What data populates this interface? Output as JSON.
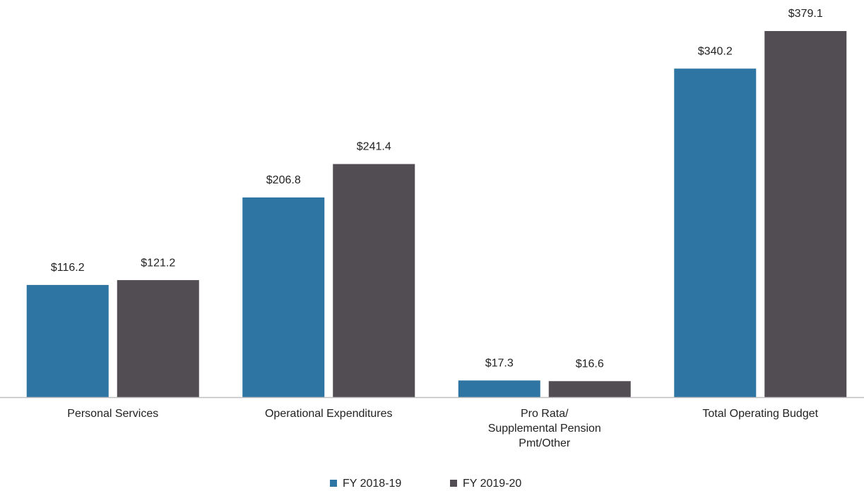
{
  "chart_data": {
    "type": "bar",
    "categories": [
      "Personal Services",
      "Operational Expenditures",
      "Pro Rata/\nSupplemental Pension\nPmt/Other",
      "Total Operating Budget"
    ],
    "series": [
      {
        "name": "FY 2018-19",
        "color": "#2e75a3",
        "values": [
          116.2,
          206.8,
          17.3,
          340.2
        ],
        "value_labels": [
          "$116.2",
          "$206.8",
          "$17.3",
          "$340.2"
        ]
      },
      {
        "name": "FY 2019-20",
        "color": "#524c53",
        "values": [
          121.2,
          241.4,
          16.6,
          379.1
        ],
        "value_labels": [
          "$121.2",
          "$241.4",
          "$16.6",
          "$379.1"
        ]
      }
    ],
    "legend": "bottom"
  }
}
